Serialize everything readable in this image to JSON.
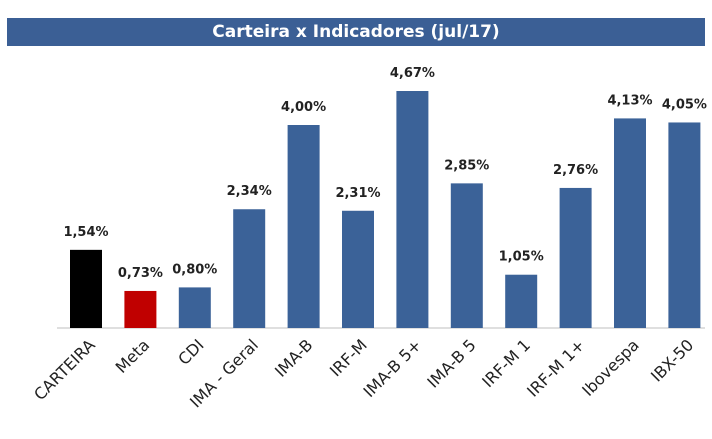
{
  "chart_data": {
    "type": "bar",
    "title": "Carteira x Indicadores (jul/17)",
    "categories": [
      "CARTEIRA",
      "Meta",
      "CDI",
      "IMA - Geral",
      "IMA-B",
      "IRF-M",
      "IMA-B 5+",
      "IMA-B 5",
      "IRF-M 1",
      "IRF-M 1+",
      "Ibovespa",
      "IBX-50"
    ],
    "values": [
      1.54,
      0.73,
      0.8,
      2.34,
      4.0,
      2.31,
      4.67,
      2.85,
      1.05,
      2.76,
      4.13,
      4.05
    ],
    "value_labels": [
      "1,54%",
      "0,73%",
      "0,80%",
      "2,34%",
      "4,00%",
      "2,31%",
      "4,67%",
      "2,85%",
      "1,05%",
      "2,76%",
      "4,13%",
      "4,05%"
    ],
    "colors": [
      "#000000",
      "#c00000",
      "#3b6298",
      "#3b6298",
      "#3b6298",
      "#3b6298",
      "#3b6298",
      "#3b6298",
      "#3b6298",
      "#3b6298",
      "#3b6298",
      "#3b6298"
    ]
  }
}
